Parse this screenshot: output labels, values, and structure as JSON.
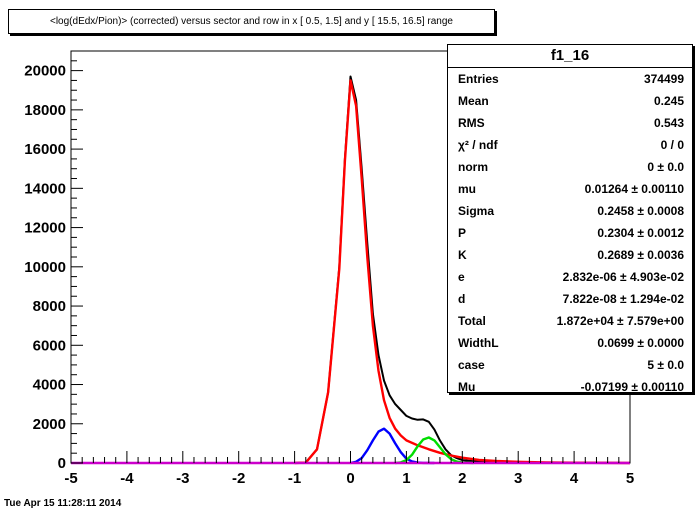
{
  "title": "<log(dEdx/Pion)> (corrected) versus sector and row in x [ 0.5,  1.5] and y [ 15.5, 16.5] range",
  "timestamp": "Tue Apr 15 11:28:11 2014",
  "stats": {
    "name": "f1_16",
    "rows": [
      {
        "label": "Entries",
        "value": "374499"
      },
      {
        "label": "Mean",
        "value": "0.245"
      },
      {
        "label": "RMS",
        "value": "0.543"
      },
      {
        "label": "χ² / ndf",
        "value": "0 / 0"
      },
      {
        "label": "norm",
        "value": "0 ± 0.0"
      },
      {
        "label": "mu",
        "value": "0.01264 ± 0.00110"
      },
      {
        "label": "Sigma",
        "value": "0.2458 ± 0.0008"
      },
      {
        "label": "P",
        "value": "0.2304 ± 0.0012"
      },
      {
        "label": "K",
        "value": "0.2689 ± 0.0036"
      },
      {
        "label": "e",
        "value": "2.832e-06 ± 4.903e-02"
      },
      {
        "label": "d",
        "value": "7.822e-08 ± 1.294e-02"
      },
      {
        "label": "Total",
        "value": "1.872e+04 ± 7.579e+00"
      },
      {
        "label": "WidthL",
        "value": "0.0699 ± 0.0000"
      },
      {
        "label": "case",
        "value": "5 ± 0.0"
      },
      {
        "label": "Mu",
        "value": "-0.07199 ± 0.00110"
      }
    ]
  },
  "chart_data": {
    "type": "line",
    "xlim": [
      -5,
      5
    ],
    "ylim": [
      0,
      21000
    ],
    "x_ticks": [
      "-5",
      "-4",
      "-3",
      "-2",
      "-1",
      "0",
      "1",
      "2",
      "3",
      "4",
      "5"
    ],
    "y_ticks": [
      "0",
      "2000",
      "4000",
      "6000",
      "8000",
      "10000",
      "12000",
      "14000",
      "16000",
      "18000",
      "20000"
    ],
    "series": [
      {
        "color": "#000000",
        "kind": "histogram",
        "x": [
          -1.0,
          -0.8,
          -0.6,
          -0.4,
          -0.2,
          -0.1,
          0.0,
          0.1,
          0.2,
          0.3,
          0.4,
          0.5,
          0.6,
          0.7,
          0.8,
          0.9,
          1.0,
          1.1,
          1.2,
          1.3,
          1.4,
          1.5,
          1.6,
          1.7,
          1.8,
          1.9,
          2.0,
          2.2,
          2.5,
          3.0,
          3.5,
          4.0,
          4.5,
          5.0
        ],
        "y": [
          0,
          30,
          700,
          3600,
          10000,
          15500,
          19700,
          18500,
          15000,
          11200,
          7600,
          5500,
          4200,
          3450,
          3000,
          2700,
          2400,
          2270,
          2200,
          2220,
          2100,
          1700,
          1150,
          700,
          400,
          250,
          150,
          90,
          50,
          30,
          20,
          10,
          5,
          0
        ]
      },
      {
        "color": "#ff0000",
        "kind": "fit",
        "x": [
          -1.0,
          -0.8,
          -0.6,
          -0.4,
          -0.2,
          -0.1,
          0.0,
          0.1,
          0.2,
          0.3,
          0.4,
          0.5,
          0.6,
          0.7,
          0.8,
          0.9,
          1.0,
          1.2,
          1.4,
          1.6,
          1.8,
          2.0,
          2.3,
          2.6,
          3.0,
          3.5,
          4.0,
          5.0
        ],
        "y": [
          0,
          20,
          700,
          3600,
          9900,
          15400,
          19500,
          18200,
          14500,
          10500,
          7000,
          4700,
          3200,
          2300,
          1750,
          1400,
          1150,
          900,
          700,
          520,
          380,
          270,
          160,
          100,
          60,
          30,
          15,
          0
        ]
      },
      {
        "color": "#0000ff",
        "kind": "fit",
        "x": [
          0.0,
          0.1,
          0.2,
          0.3,
          0.4,
          0.5,
          0.6,
          0.7,
          0.8,
          0.9,
          1.0,
          1.1,
          1.2,
          1.3,
          1.5
        ],
        "y": [
          0,
          60,
          250,
          650,
          1150,
          1600,
          1750,
          1500,
          1000,
          550,
          220,
          80,
          20,
          5,
          0
        ]
      },
      {
        "color": "#00dd00",
        "kind": "fit",
        "x": [
          0.8,
          0.9,
          1.0,
          1.1,
          1.2,
          1.3,
          1.4,
          1.5,
          1.6,
          1.7,
          1.8,
          1.9,
          2.0,
          2.2
        ],
        "y": [
          0,
          30,
          150,
          420,
          850,
          1200,
          1300,
          1150,
          800,
          450,
          200,
          70,
          20,
          0
        ]
      },
      {
        "color": "#cc00cc",
        "kind": "fit",
        "x": [
          -5,
          5
        ],
        "y": [
          0,
          0
        ]
      }
    ]
  }
}
